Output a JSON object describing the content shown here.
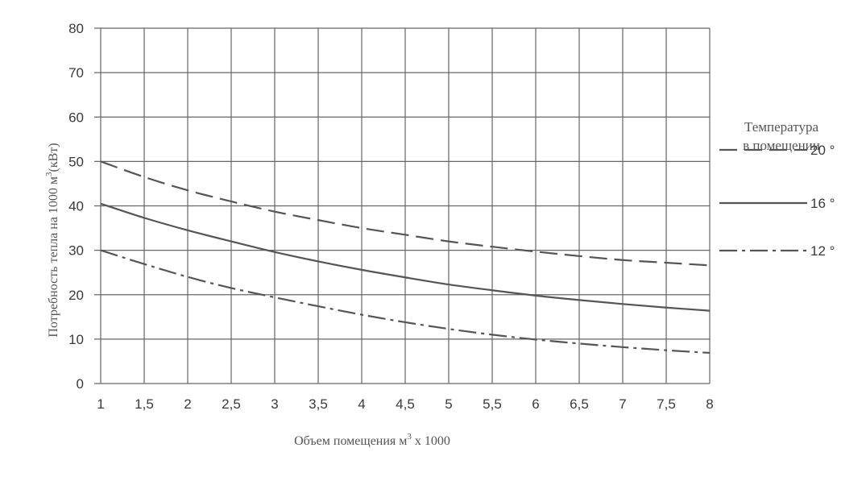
{
  "chart_data": {
    "type": "line",
    "xlabel": "Объем помещения м",
    "xlabel_sup": "3",
    "xlabel_suffix": " x 1000",
    "ylabel": "Потребность тепла на 1000 м",
    "ylabel_sup": "3",
    "ylabel_suffix": "(кВт)",
    "xlim": [
      1,
      8
    ],
    "ylim": [
      0,
      80
    ],
    "x_ticks": [
      "1",
      "1,5",
      "2",
      "2,5",
      "3",
      "3,5",
      "4",
      "4,5",
      "5",
      "5,5",
      "6",
      "6,5",
      "7",
      "7,5",
      "8"
    ],
    "y_ticks": [
      "0",
      "10",
      "20",
      "30",
      "40",
      "50",
      "60",
      "70",
      "80"
    ],
    "grid": true,
    "legend_title": [
      "Температура",
      "в помещении"
    ],
    "legend_position": "right",
    "series": [
      {
        "name": "20 °",
        "style": "dashed",
        "x": [
          1,
          1.5,
          2,
          2.5,
          3,
          3.5,
          4,
          4.5,
          5,
          5.5,
          6,
          6.5,
          7,
          7.5,
          8
        ],
        "values": [
          50,
          46.5,
          43.5,
          41,
          38.7,
          36.8,
          35,
          33.5,
          32,
          30.8,
          29.7,
          28.7,
          27.8,
          27.2,
          26.6
        ]
      },
      {
        "name": "16 °",
        "style": "solid",
        "x": [
          1,
          1.5,
          2,
          2.5,
          3,
          3.5,
          4,
          4.5,
          5,
          5.5,
          6,
          6.5,
          7,
          7.5,
          8
        ],
        "values": [
          40.5,
          37.3,
          34.5,
          32,
          29.6,
          27.5,
          25.6,
          23.9,
          22.3,
          21,
          19.8,
          18.8,
          17.9,
          17.1,
          16.4
        ]
      },
      {
        "name": "12 °",
        "style": "dashdot",
        "x": [
          1,
          1.5,
          2,
          2.5,
          3,
          3.5,
          4,
          4.5,
          5,
          5.5,
          6,
          6.5,
          7,
          7.5,
          8
        ],
        "values": [
          30,
          26.9,
          24,
          21.5,
          19.4,
          17.4,
          15.5,
          13.8,
          12.3,
          11,
          9.9,
          9,
          8.2,
          7.5,
          6.9
        ]
      }
    ],
    "colors": {
      "line": "#555555",
      "grid": "#666666",
      "text": "#3a3a3a"
    }
  }
}
